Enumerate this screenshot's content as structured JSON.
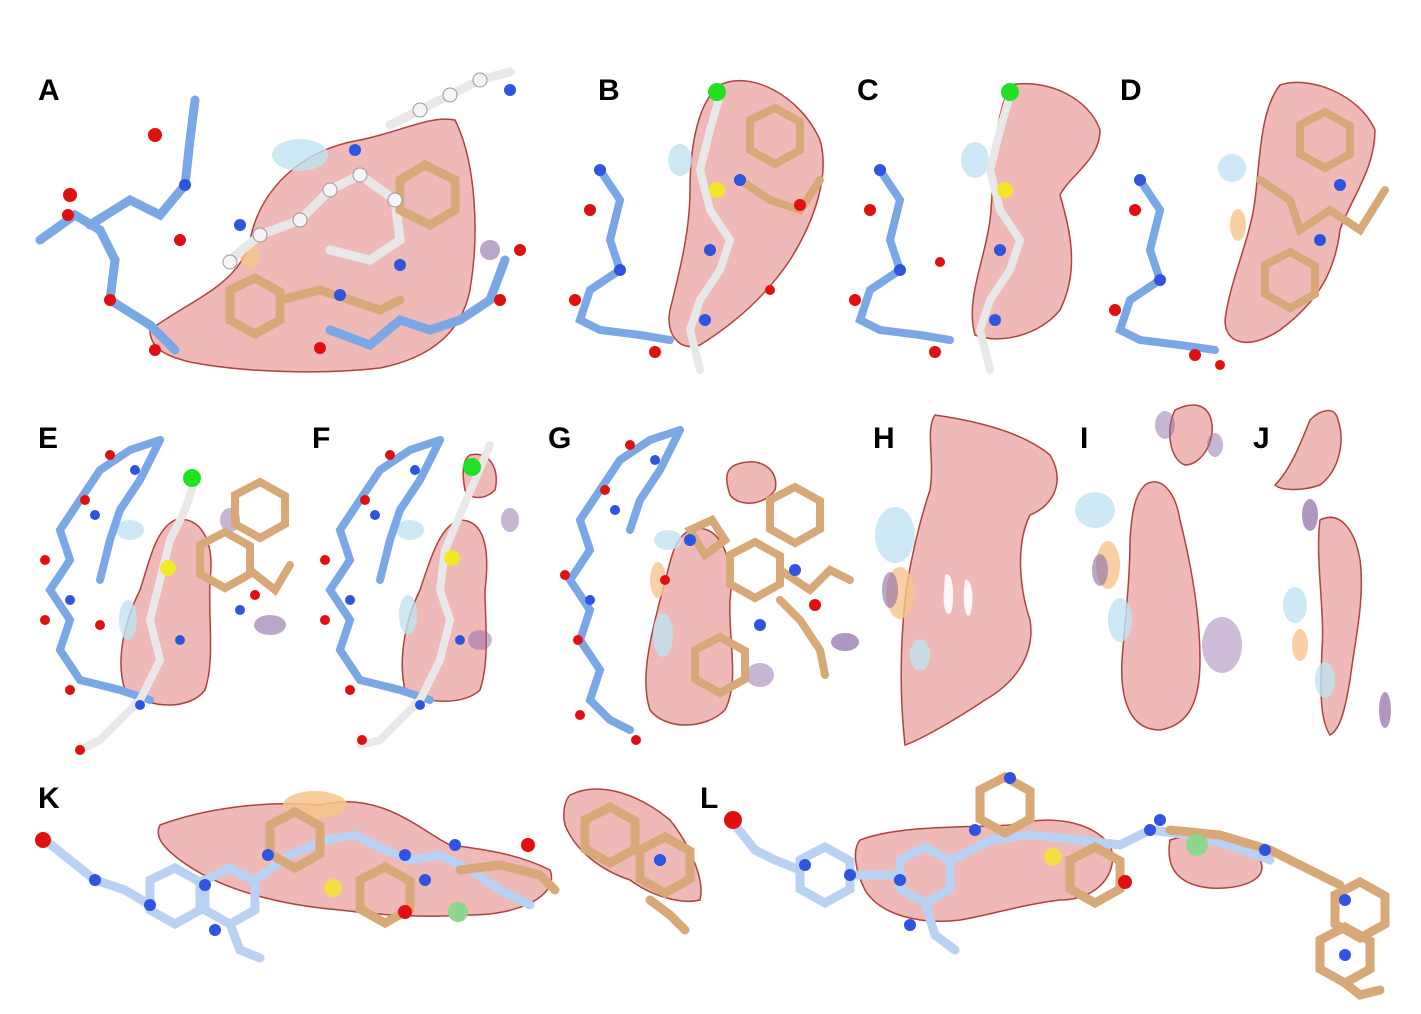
{
  "colors": {
    "background": "#ffffff",
    "surface_red": "#e07f7a",
    "surface_red_edge": "#b2423d",
    "surface_blue": "#bfe3f2",
    "surface_orange": "#f6c48c",
    "surface_purple": "#8e6ba8",
    "carbon_blue": "#7aa7e6",
    "carbon_blue_light": "#b9d1f2",
    "carbon_tan": "#d9a878",
    "carbon_white": "#f2f2f2",
    "nitrogen": "#2f55e0",
    "oxygen": "#e01010",
    "sulfur": "#f2e82a",
    "halogen": "#22e022",
    "bond": "#333333"
  },
  "panels": [
    {
      "id": "A",
      "label": "A"
    },
    {
      "id": "B",
      "label": "B"
    },
    {
      "id": "C",
      "label": "C"
    },
    {
      "id": "D",
      "label": "D"
    },
    {
      "id": "E",
      "label": "E"
    },
    {
      "id": "F",
      "label": "F"
    },
    {
      "id": "G",
      "label": "G"
    },
    {
      "id": "H",
      "label": "H"
    },
    {
      "id": "I",
      "label": "I"
    },
    {
      "id": "J",
      "label": "J"
    },
    {
      "id": "K",
      "label": "K"
    },
    {
      "id": "L",
      "label": "L"
    }
  ]
}
